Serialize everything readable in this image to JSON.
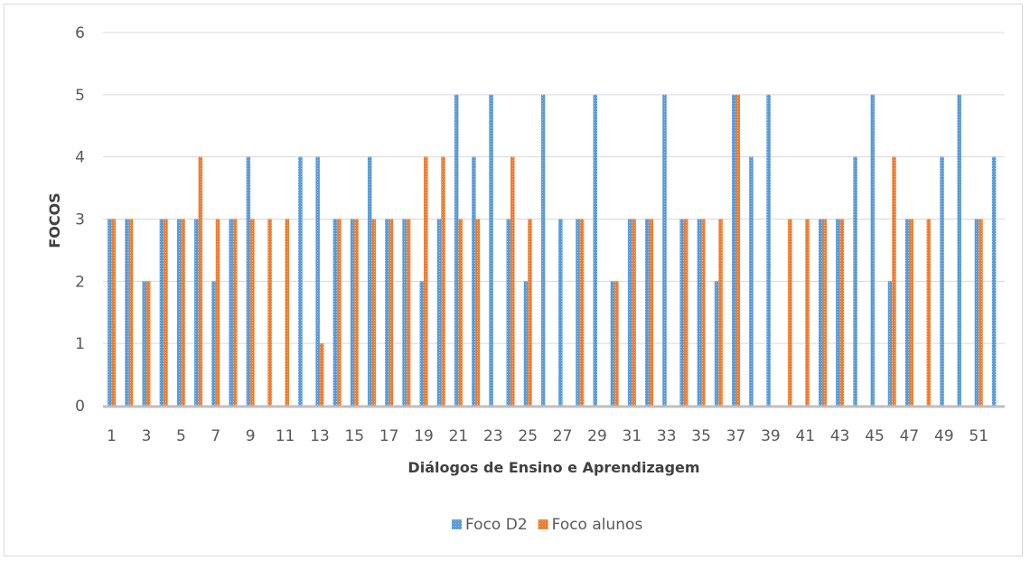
{
  "chart_data": {
    "type": "bar",
    "title": "",
    "xlabel": "Diálogos de Ensino e Aprendizagem",
    "ylabel": "FOCOS",
    "ylim": [
      0,
      6
    ],
    "yticks": [
      0,
      1,
      2,
      3,
      4,
      5,
      6
    ],
    "grid": "horizontal",
    "legend_position": "bottom",
    "categories": [
      1,
      2,
      3,
      4,
      5,
      6,
      7,
      8,
      9,
      10,
      11,
      12,
      13,
      14,
      15,
      16,
      17,
      18,
      19,
      20,
      21,
      22,
      23,
      24,
      25,
      26,
      27,
      28,
      29,
      30,
      31,
      32,
      33,
      34,
      35,
      36,
      37,
      38,
      39,
      40,
      41,
      42,
      43,
      44,
      45,
      46,
      47,
      48,
      49,
      50,
      51,
      52
    ],
    "xtick_labels": [
      "1",
      "",
      "3",
      "",
      "5",
      "",
      "7",
      "",
      "9",
      "",
      "11",
      "",
      "13",
      "",
      "15",
      "",
      "17",
      "",
      "19",
      "",
      "21",
      "",
      "23",
      "",
      "25",
      "",
      "27",
      "",
      "29",
      "",
      "31",
      "",
      "33",
      "",
      "35",
      "",
      "37",
      "",
      "39",
      "",
      "41",
      "",
      "43",
      "",
      "45",
      "",
      "47",
      "",
      "49",
      "",
      "51",
      ""
    ],
    "series": [
      {
        "name": "Foco D2",
        "color": "#5b9bd5",
        "values": [
          3,
          3,
          2,
          3,
          3,
          3,
          2,
          3,
          4,
          0,
          0,
          4,
          4,
          3,
          3,
          4,
          3,
          3,
          2,
          3,
          5,
          4,
          5,
          3,
          2,
          5,
          3,
          3,
          5,
          2,
          3,
          3,
          5,
          3,
          3,
          2,
          5,
          4,
          5,
          0,
          0,
          3,
          3,
          4,
          5,
          2,
          3,
          0,
          4,
          5,
          3,
          4
        ]
      },
      {
        "name": "Foco alunos",
        "color": "#ed7d31",
        "values": [
          3,
          3,
          2,
          3,
          3,
          4,
          3,
          3,
          3,
          3,
          3,
          0,
          1,
          3,
          3,
          3,
          3,
          3,
          4,
          4,
          3,
          3,
          0,
          4,
          3,
          0,
          0,
          3,
          0,
          2,
          3,
          3,
          0,
          3,
          3,
          3,
          5,
          0,
          0,
          3,
          3,
          3,
          3,
          0,
          0,
          4,
          3,
          3,
          0,
          0,
          3,
          0
        ]
      }
    ]
  }
}
